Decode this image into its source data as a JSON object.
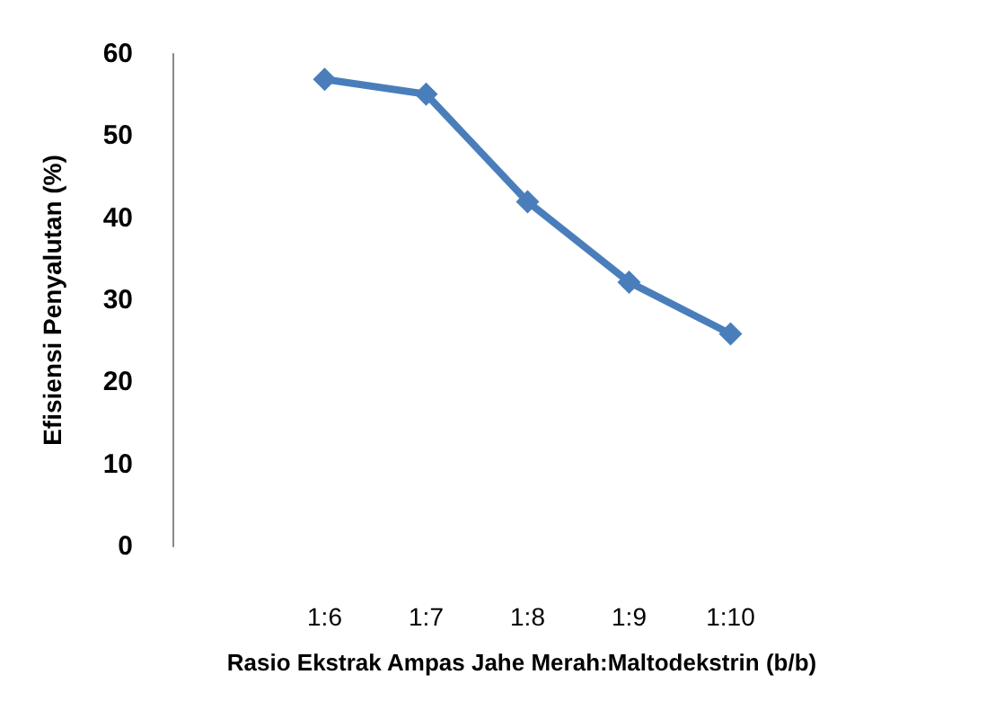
{
  "chart_data": {
    "type": "line",
    "xlabel": "Rasio Ekstrak Ampas Jahe Merah:Maltodekstrin (b/b)",
    "ylabel": "Efisiensi Penyalutan (%)",
    "categories": [
      null,
      "1:6",
      "1:7",
      "1:8",
      "1:9",
      "1:10"
    ],
    "series": [
      {
        "color": "#4a7ebb",
        "values": [
          null,
          56.9,
          55.1,
          42.0,
          32.2,
          25.9
        ]
      }
    ],
    "ylim": [
      0,
      60
    ],
    "yticks": [
      0,
      10,
      20,
      30,
      40,
      50,
      60
    ],
    "grid": false,
    "marker": "diamond",
    "line_style": "solid"
  }
}
